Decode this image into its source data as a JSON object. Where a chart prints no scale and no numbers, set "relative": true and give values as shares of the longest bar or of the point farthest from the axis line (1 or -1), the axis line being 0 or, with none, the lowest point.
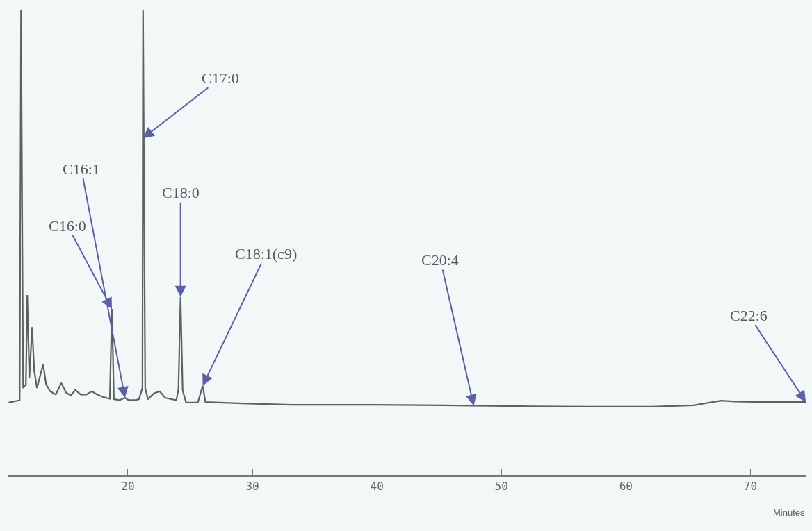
{
  "chart_data": {
    "type": "line",
    "relative": true,
    "xlabel": "Minutes",
    "xlim": [
      10.4,
      74.5
    ],
    "xticks": [
      20,
      30,
      40,
      50,
      60,
      70
    ],
    "grid": false,
    "marker": "none",
    "line_style": "solid",
    "x": [
      10.42,
      11.31,
      11.42,
      11.59,
      11.81,
      11.92,
      12.09,
      12.31,
      12.48,
      12.7,
      12.98,
      13.2,
      13.43,
      13.76,
      14.21,
      14.65,
      15.04,
      15.43,
      15.77,
      16.21,
      16.66,
      17.1,
      17.55,
      18.1,
      18.55,
      18.72,
      18.88,
      19.33,
      19.77,
      20.05,
      20.61,
      20.89,
      21.17,
      21.2,
      21.22,
      21.39,
      21.61,
      22.11,
      22.56,
      23.0,
      23.89,
      24.06,
      24.23,
      24.4,
      24.67,
      25.62,
      26.01,
      26.23,
      29.24,
      33.14,
      39.82,
      45.39,
      47.78,
      51.51,
      57.08,
      62.09,
      65.43,
      67.66,
      68.77,
      70.99,
      74.45
    ],
    "series": [
      {
        "color": "#5a6262",
        "values": [
          0.157,
          0.162,
          1.0,
          0.188,
          0.196,
          0.388,
          0.21,
          0.319,
          0.225,
          0.188,
          0.217,
          0.239,
          0.196,
          0.181,
          0.174,
          0.199,
          0.178,
          0.172,
          0.184,
          0.174,
          0.174,
          0.181,
          0.174,
          0.168,
          0.165,
          0.358,
          0.164,
          0.162,
          0.167,
          0.162,
          0.162,
          0.164,
          0.188,
          0.725,
          1.0,
          0.188,
          0.164,
          0.177,
          0.181,
          0.167,
          0.162,
          0.185,
          0.384,
          0.183,
          0.157,
          0.157,
          0.193,
          0.158,
          0.155,
          0.152,
          0.152,
          0.151,
          0.15,
          0.149,
          0.148,
          0.148,
          0.151,
          0.161,
          0.159,
          0.158,
          0.158
        ]
      }
    ],
    "annotations": [
      {
        "text": "C17:0",
        "x": 21.2,
        "y": 0.725
      },
      {
        "text": "C16:1",
        "x": 19.77,
        "y": 0.167
      },
      {
        "text": "C16:0",
        "x": 18.72,
        "y": 0.358
      },
      {
        "text": "C18:0",
        "x": 24.23,
        "y": 0.384
      },
      {
        "text": "C18:1(c9)",
        "x": 26.01,
        "y": 0.193
      },
      {
        "text": "C20:4",
        "x": 47.78,
        "y": 0.15
      },
      {
        "text": "C22:6",
        "x": 74.45,
        "y": 0.158
      }
    ]
  }
}
